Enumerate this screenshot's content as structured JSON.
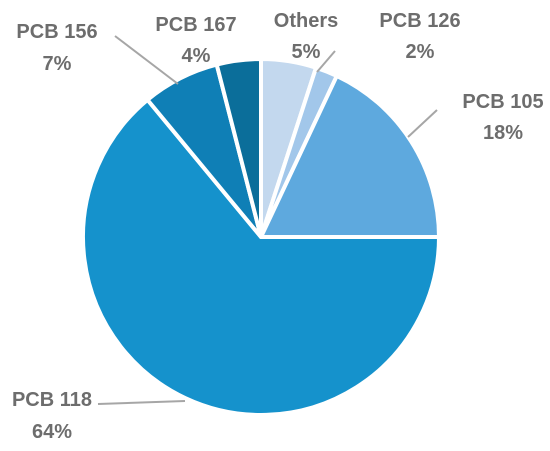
{
  "chart_data": {
    "type": "pie",
    "slices": [
      {
        "label": "Others",
        "value": 5,
        "pct_label": "5%",
        "color": "#c3d8ee"
      },
      {
        "label": "PCB 126",
        "value": 2,
        "pct_label": "2%",
        "color": "#a2c7ea"
      },
      {
        "label": "PCB 105",
        "value": 18,
        "pct_label": "18%",
        "color": "#5ea9de"
      },
      {
        "label": "PCB 118",
        "value": 64,
        "pct_label": "64%",
        "color": "#1592cc"
      },
      {
        "label": "PCB 156",
        "value": 7,
        "pct_label": "7%",
        "color": "#0f7fb6"
      },
      {
        "label": "PCB 167",
        "value": 4,
        "pct_label": "4%",
        "color": "#0b6e9a"
      }
    ],
    "start_angle_deg": 0,
    "direction": "clockwise",
    "leader_color": "#a6a6a6",
    "label_color": "#6d6d6d"
  }
}
